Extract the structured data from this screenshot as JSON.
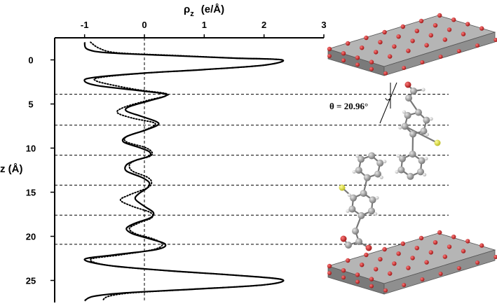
{
  "chart_data": {
    "type": "line",
    "xlabel": {
      "symbol": "ρ",
      "subscript": "z",
      "units": "(e/Å)"
    },
    "ylabel": "z (Å)",
    "x_axis_position": "top",
    "y_axis_inverted": true,
    "xlim": [
      -1.5,
      3
    ],
    "ylim": [
      -2.5,
      27.5
    ],
    "xticks": [
      -1,
      0,
      1,
      2,
      3
    ],
    "yticks": [
      0,
      5,
      10,
      15,
      20,
      25
    ],
    "reference_line_x": 0,
    "dashed_lines_z": [
      3.9,
      7.4,
      10.8,
      14.2,
      17.6,
      20.9
    ],
    "series": [
      {
        "style": "solid",
        "points": [
          [
            -1.0,
            -2
          ],
          [
            -0.95,
            -1.2
          ],
          [
            -0.6,
            -0.8
          ],
          [
            0.4,
            -0.5
          ],
          [
            1.5,
            -0.2
          ],
          [
            2.3,
            0
          ],
          [
            2.0,
            0.6
          ],
          [
            1.0,
            1.1
          ],
          [
            0.0,
            1.5
          ],
          [
            -0.85,
            2.0
          ],
          [
            -1.0,
            2.4
          ],
          [
            -0.8,
            2.9
          ],
          [
            -0.2,
            3.4
          ],
          [
            0.3,
            3.8
          ],
          [
            0.35,
            4.1
          ],
          [
            0.1,
            4.6
          ],
          [
            -0.25,
            5.3
          ],
          [
            -0.3,
            5.8
          ],
          [
            -0.05,
            6.4
          ],
          [
            0.2,
            7.0
          ],
          [
            0.22,
            7.4
          ],
          [
            0.0,
            8.0
          ],
          [
            -0.3,
            8.7
          ],
          [
            -0.35,
            9.3
          ],
          [
            -0.1,
            9.9
          ],
          [
            0.08,
            10.4
          ],
          [
            0.08,
            10.9
          ],
          [
            -0.15,
            11.4
          ],
          [
            -0.3,
            11.9
          ],
          [
            -0.3,
            12.6
          ],
          [
            -0.05,
            13.3
          ],
          [
            0.08,
            13.9
          ],
          [
            0.05,
            14.5
          ],
          [
            -0.1,
            15.2
          ],
          [
            -0.15,
            15.8
          ],
          [
            0.0,
            16.6
          ],
          [
            0.15,
            17.3
          ],
          [
            0.1,
            17.9
          ],
          [
            -0.15,
            18.5
          ],
          [
            -0.3,
            19.1
          ],
          [
            -0.2,
            19.7
          ],
          [
            0.1,
            20.3
          ],
          [
            0.35,
            20.9
          ],
          [
            0.2,
            21.5
          ],
          [
            -0.5,
            22.1
          ],
          [
            -1.0,
            22.6
          ],
          [
            -0.6,
            23.3
          ],
          [
            0.4,
            23.9
          ],
          [
            1.5,
            24.4
          ],
          [
            2.3,
            24.9
          ],
          [
            2.0,
            25.5
          ],
          [
            0.8,
            26.0
          ],
          [
            -0.3,
            26.4
          ],
          [
            -0.85,
            26.8
          ],
          [
            -1.0,
            27.3
          ]
        ]
      },
      {
        "style": "dotted",
        "points": [
          [
            -0.9,
            -2
          ],
          [
            -0.75,
            -1.3
          ],
          [
            -0.45,
            -0.8
          ],
          [
            0.5,
            -0.5
          ],
          [
            1.5,
            -0.2
          ],
          [
            2.3,
            0
          ],
          [
            2.0,
            0.6
          ],
          [
            1.0,
            1.1
          ],
          [
            0.0,
            1.5
          ],
          [
            -0.75,
            2.0
          ],
          [
            -0.8,
            2.4
          ],
          [
            -0.5,
            2.9
          ],
          [
            -0.1,
            3.4
          ],
          [
            0.35,
            3.8
          ],
          [
            0.35,
            4.1
          ],
          [
            0.05,
            4.6
          ],
          [
            -0.35,
            5.4
          ],
          [
            -0.45,
            6.0
          ],
          [
            -0.2,
            6.6
          ],
          [
            0.15,
            7.1
          ],
          [
            0.15,
            7.5
          ],
          [
            -0.05,
            8.1
          ],
          [
            -0.3,
            8.7
          ],
          [
            -0.3,
            9.3
          ],
          [
            0.0,
            9.9
          ],
          [
            0.12,
            10.4
          ],
          [
            0.1,
            10.9
          ],
          [
            -0.15,
            11.4
          ],
          [
            -0.25,
            11.9
          ],
          [
            -0.2,
            12.6
          ],
          [
            0.05,
            13.3
          ],
          [
            0.12,
            13.9
          ],
          [
            0.05,
            14.5
          ],
          [
            -0.25,
            15.3
          ],
          [
            -0.4,
            15.9
          ],
          [
            -0.2,
            16.6
          ],
          [
            0.1,
            17.3
          ],
          [
            0.12,
            17.9
          ],
          [
            -0.1,
            18.5
          ],
          [
            -0.25,
            19.1
          ],
          [
            -0.15,
            19.7
          ],
          [
            0.15,
            20.3
          ],
          [
            0.3,
            20.9
          ],
          [
            0.15,
            21.5
          ],
          [
            -0.4,
            22.1
          ],
          [
            -0.9,
            22.6
          ],
          [
            -0.6,
            23.3
          ],
          [
            0.4,
            23.9
          ],
          [
            1.5,
            24.4
          ],
          [
            2.3,
            24.9
          ],
          [
            2.0,
            25.5
          ],
          [
            0.8,
            26.0
          ],
          [
            -0.2,
            26.4
          ],
          [
            -0.6,
            26.8
          ],
          [
            -0.7,
            27.3
          ]
        ]
      }
    ],
    "annotations": [
      {
        "text": "θ = 20.96°"
      }
    ]
  },
  "colors": {
    "line": "#000000",
    "slab_body": "#8c8c8c",
    "slab_top": "#b5b5b5",
    "slab_side": "#6f6f6f",
    "oxygen": "#cc1f1f",
    "carbon": "#8a8a8a",
    "hydrogen": "#e8e8e8",
    "fluorine": "#e3e33a"
  }
}
